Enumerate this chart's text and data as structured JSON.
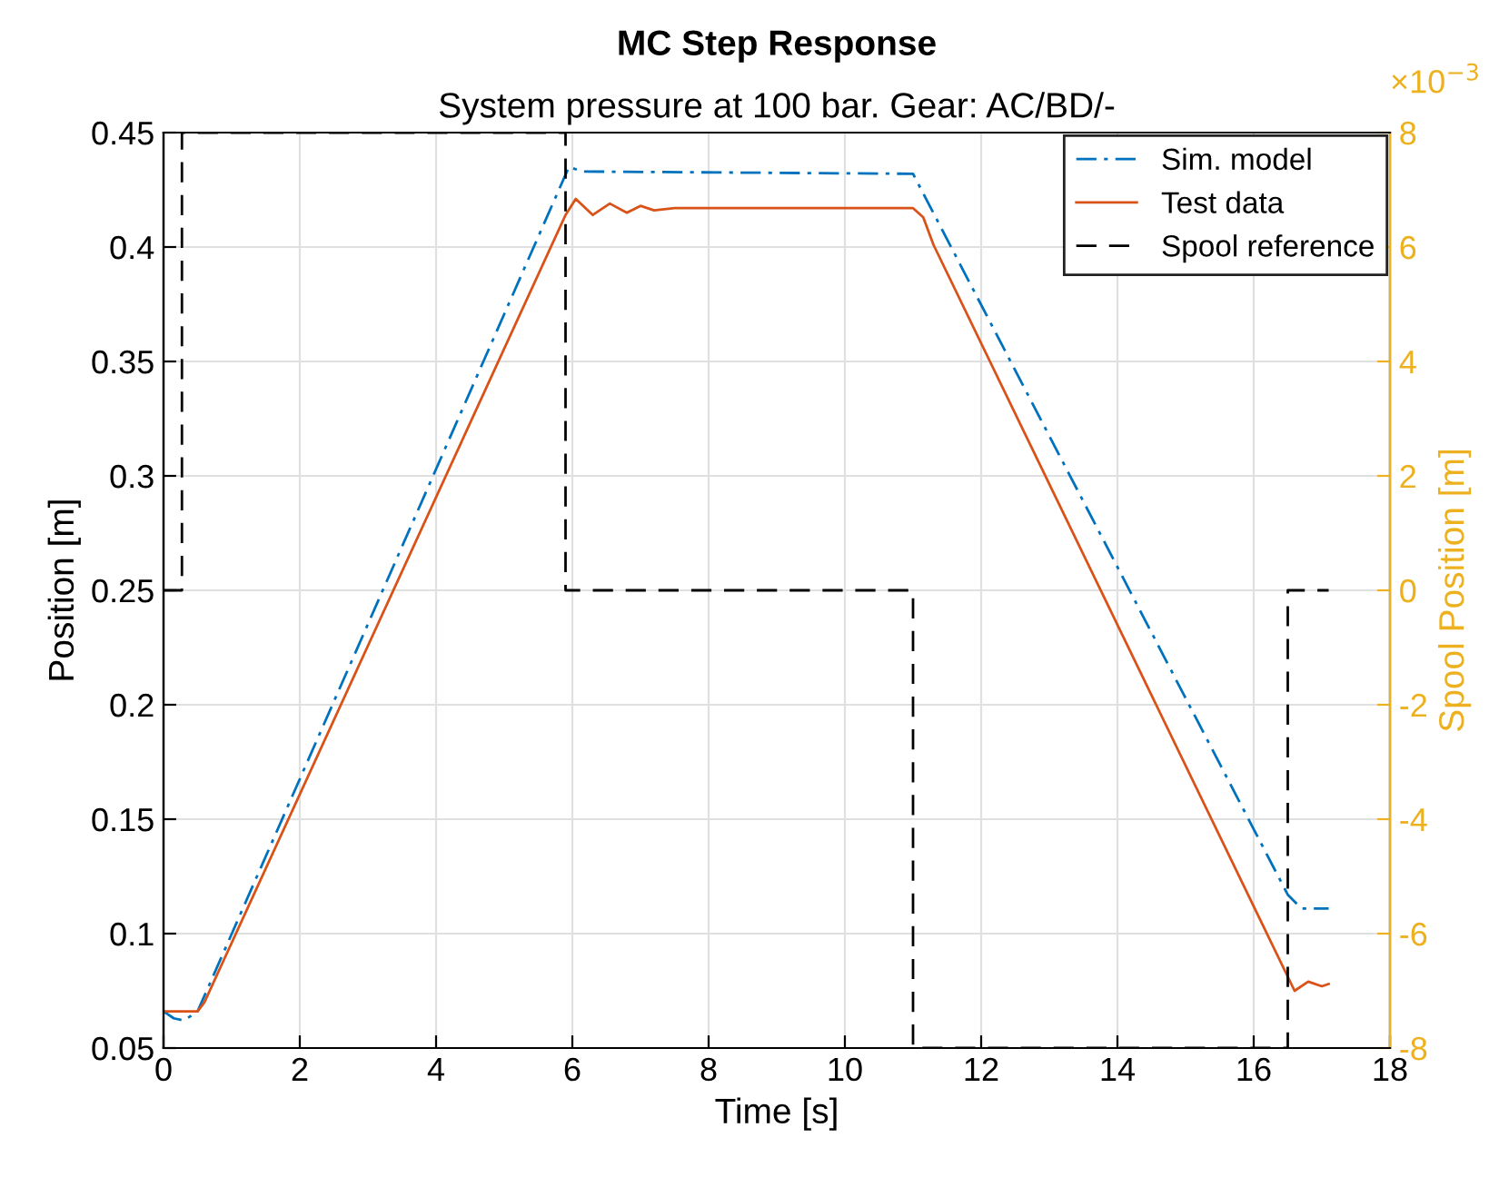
{
  "chart_data": {
    "type": "line",
    "title": "MC Step Response",
    "subtitle": "System pressure at 100 bar. Gear: AC/BD/-",
    "xlabel": "Time [s]",
    "ylabel": "Position [m]",
    "y2label": "Spool Position [m]",
    "annotations": [
      "×10$^{−3}$"
    ],
    "series": [
      {
        "name": "Sim. model",
        "color": "#0072bd",
        "line_style": "dashdot",
        "x": [
          0,
          0.15,
          0.3,
          0.5,
          5.95,
          6.15,
          11.0,
          16.5,
          16.7,
          17.1
        ],
        "values": [
          0.066,
          0.063,
          0.062,
          0.066,
          0.435,
          0.433,
          0.432,
          0.117,
          0.111,
          0.111
        ]
      },
      {
        "name": "Test data",
        "color": "#d95319",
        "line_style": "solid",
        "x": [
          0,
          0.5,
          0.6,
          5.9,
          6.05,
          6.3,
          6.55,
          6.8,
          7.0,
          7.2,
          7.5,
          11.0,
          11.15,
          11.3,
          16.6,
          16.8,
          17.0,
          17.1
        ],
        "values": [
          0.066,
          0.066,
          0.07,
          0.414,
          0.421,
          0.414,
          0.419,
          0.415,
          0.418,
          0.416,
          0.417,
          0.417,
          0.413,
          0.401,
          0.075,
          0.079,
          0.077,
          0.078
        ]
      },
      {
        "name": "Spool reference",
        "color": "#000000",
        "type": "step",
        "axis": "y2",
        "line_style": "dashed",
        "x": [
          0,
          0.27,
          5.9,
          11.0,
          16.5,
          17.1
        ],
        "values": [
          0,
          8,
          0,
          -8,
          0,
          0
        ]
      }
    ],
    "xlim": [
      0,
      18
    ],
    "xticks": [
      0,
      2,
      4,
      6,
      8,
      10,
      12,
      14,
      16,
      18
    ],
    "ylim": [
      0.05,
      0.45
    ],
    "yticks": [
      0.05,
      0.1,
      0.15,
      0.2,
      0.25,
      0.3,
      0.35,
      0.4,
      0.45
    ],
    "y2lim": [
      -8,
      8
    ],
    "y2ticks": [
      -8,
      -6,
      -4,
      -2,
      0,
      2,
      4,
      6,
      8
    ],
    "grid": true,
    "legend": "top right"
  }
}
